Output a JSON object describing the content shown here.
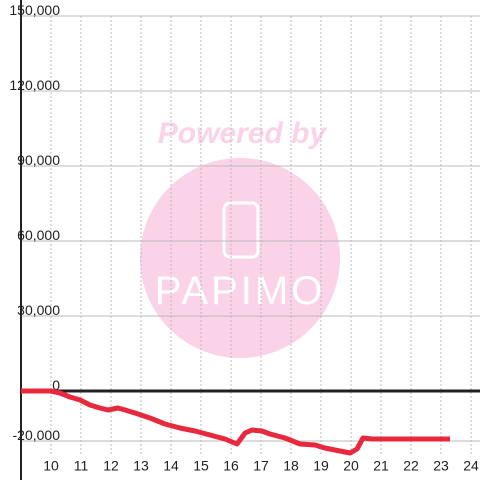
{
  "chart_data": {
    "type": "line",
    "watermark": {
      "line1": "Powered by",
      "line2": "PAPIMO"
    },
    "x": [
      9,
      10,
      10.3,
      10.63,
      10.97,
      11.3,
      11.63,
      11.9,
      12.23,
      12.47,
      12.8,
      13.3,
      13.8,
      14.3,
      14.8,
      15.3,
      15.8,
      16.2,
      16.47,
      16.7,
      17.03,
      17.3,
      17.8,
      18.3,
      18.8,
      19.13,
      19.63,
      19.97,
      20.2,
      20.4,
      20.7,
      21.3,
      23.3
    ],
    "series": [
      {
        "color": "#e8283c",
        "values": [
          0,
          0,
          -800,
          -2400,
          -3600,
          -5600,
          -6800,
          -7600,
          -6800,
          -7600,
          -8800,
          -10800,
          -13200,
          -14800,
          -16000,
          -17600,
          -19200,
          -21200,
          -16800,
          -15600,
          -16000,
          -17200,
          -18800,
          -21200,
          -21600,
          -22800,
          -24000,
          -24800,
          -23200,
          -18800,
          -19200,
          -19200,
          -19200
        ]
      }
    ],
    "xlim": [
      9,
      24.3
    ],
    "xticks": [
      10,
      11,
      12,
      13,
      14,
      15,
      16,
      17,
      18,
      19,
      20,
      21,
      22,
      23,
      24
    ],
    "ylim": [
      -26000,
      150000
    ],
    "yticks": [
      {
        "value": -20000,
        "label": "-20,000"
      },
      0,
      {
        "value": 30000,
        "label": "30,000"
      },
      {
        "value": 60000,
        "label": "60,000"
      },
      {
        "value": 90000,
        "label": "90,000"
      },
      {
        "value": 120000,
        "label": "120,000"
      },
      {
        "value": 150000,
        "label": "150,000"
      }
    ],
    "grid": true
  }
}
